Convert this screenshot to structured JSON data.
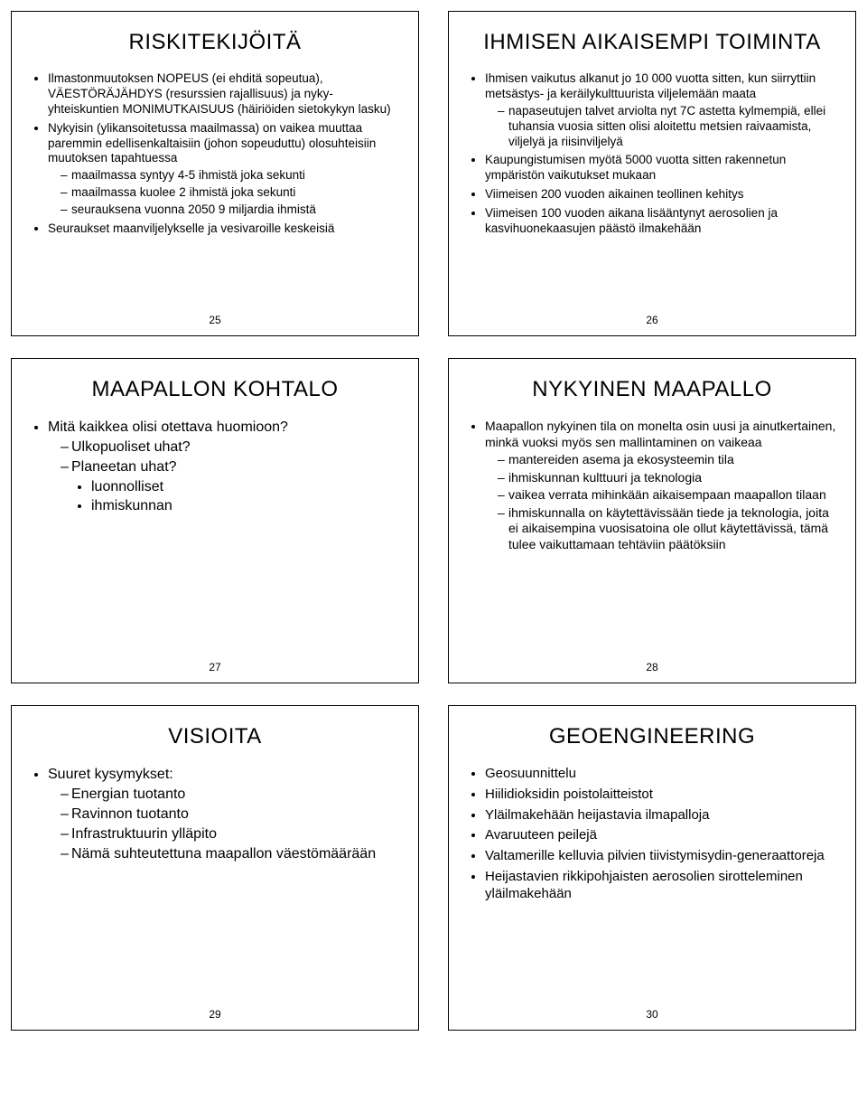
{
  "slides": [
    {
      "title": "RISKITEKIJÖITÄ",
      "page": "25",
      "items": [
        {
          "t": "Ilmastonmuutoksen NOPEUS (ei ehditä sopeutua), VÄESTÖRÄJÄHDYS (resurssien rajallisuus) ja nyky-yhteiskuntien MONIMUTKAISUUS (häiriöiden sietokykyn lasku)"
        },
        {
          "t": "Nykyisin (ylikansoitetussa maailmassa) on vaikea muuttaa paremmin edellisenkaltaisiin (johon sopeuduttu) olosuhteisiin muutoksen tapahtuessa",
          "sub": [
            {
              "t": "maailmassa syntyy 4-5 ihmistä joka sekunti"
            },
            {
              "t": "maailmassa kuolee 2 ihmistä joka sekunti"
            },
            {
              "t": "seurauksena vuonna 2050  9 miljardia ihmistä"
            }
          ]
        },
        {
          "t": "Seuraukset maanviljelykselle ja vesivaroille keskeisiä"
        }
      ]
    },
    {
      "title": "IHMISEN AIKAISEMPI TOIMINTA",
      "page": "26",
      "items": [
        {
          "t": "Ihmisen vaikutus alkanut jo 10 000 vuotta sitten, kun siirryttiin metsästys- ja keräilykulttuurista viljelemään maata",
          "sub": [
            {
              "t": "napaseutujen talvet arviolta nyt 7C astetta kylmempiä, ellei tuhansia vuosia sitten olisi aloitettu metsien raivaamista, viljelyä ja riisinviljelyä"
            }
          ]
        },
        {
          "t": "Kaupungistumisen myötä 5000 vuotta sitten rakennetun ympäristön vaikutukset mukaan"
        },
        {
          "t": "Viimeisen 200 vuoden aikainen teollinen kehitys"
        },
        {
          "t": "Viimeisen 100 vuoden aikana lisääntynyt aerosolien ja kasvihuonekaasujen päästö ilmakehään"
        }
      ]
    },
    {
      "title": "MAAPALLON KOHTALO",
      "page": "27",
      "sizeClass": "sz-lg",
      "items": [
        {
          "t": "Mitä kaikkea olisi otettava huomioon?",
          "sub": [
            {
              "t": "Ulkopuoliset uhat?"
            },
            {
              "t": "Planeetan uhat?",
              "subsub": [
                {
                  "t": "luonnolliset"
                },
                {
                  "t": "ihmiskunnan"
                }
              ]
            }
          ]
        }
      ]
    },
    {
      "title": "NYKYINEN MAAPALLO",
      "page": "28",
      "sizeClass": "sz-md",
      "items": [
        {
          "t": "Maapallon nykyinen tila on monelta osin uusi ja ainutkertainen, minkä vuoksi myös sen mallintaminen on vaikeaa",
          "sub": [
            {
              "t": "mantereiden asema ja ekosysteemin tila"
            },
            {
              "t": "ihmiskunnan kulttuuri ja teknologia"
            },
            {
              "t": "vaikea verrata mihinkään aikaisempaan maapallon tilaan"
            },
            {
              "t": "ihmiskunnalla on käytettävissään tiede ja teknologia, joita ei aikaisempina vuosisatoina ole ollut käytettävissä, tämä tulee vaikuttamaan tehtäviin päätöksiin"
            }
          ]
        }
      ]
    },
    {
      "title": "VISIOITA",
      "page": "29",
      "sizeClass": "sz-lg",
      "items": [
        {
          "t": "Suuret kysymykset:",
          "sub": [
            {
              "t": "Energian tuotanto"
            },
            {
              "t": "Ravinnon tuotanto"
            },
            {
              "t": "Infrastruktuurin ylläpito"
            },
            {
              "t": "Nämä suhteutettuna maapallon väestömäärään"
            }
          ]
        }
      ]
    },
    {
      "title": "GEOENGINEERING",
      "page": "30",
      "sizeClass": "sz-md2",
      "items": [
        {
          "t": "Geosuunnittelu"
        },
        {
          "t": "Hiilidioksidin poistolaitteistot"
        },
        {
          "t": "Yläilmakehään heijastavia ilmapalloja"
        },
        {
          "t": "Avaruuteen peilejä"
        },
        {
          "t": "Valtamerille kelluvia pilvien tiivistymisydin-generaattoreja"
        },
        {
          "t": "Heijastavien rikkipohjaisten aerosolien sirotteleminen yläilmakehään"
        }
      ]
    }
  ]
}
